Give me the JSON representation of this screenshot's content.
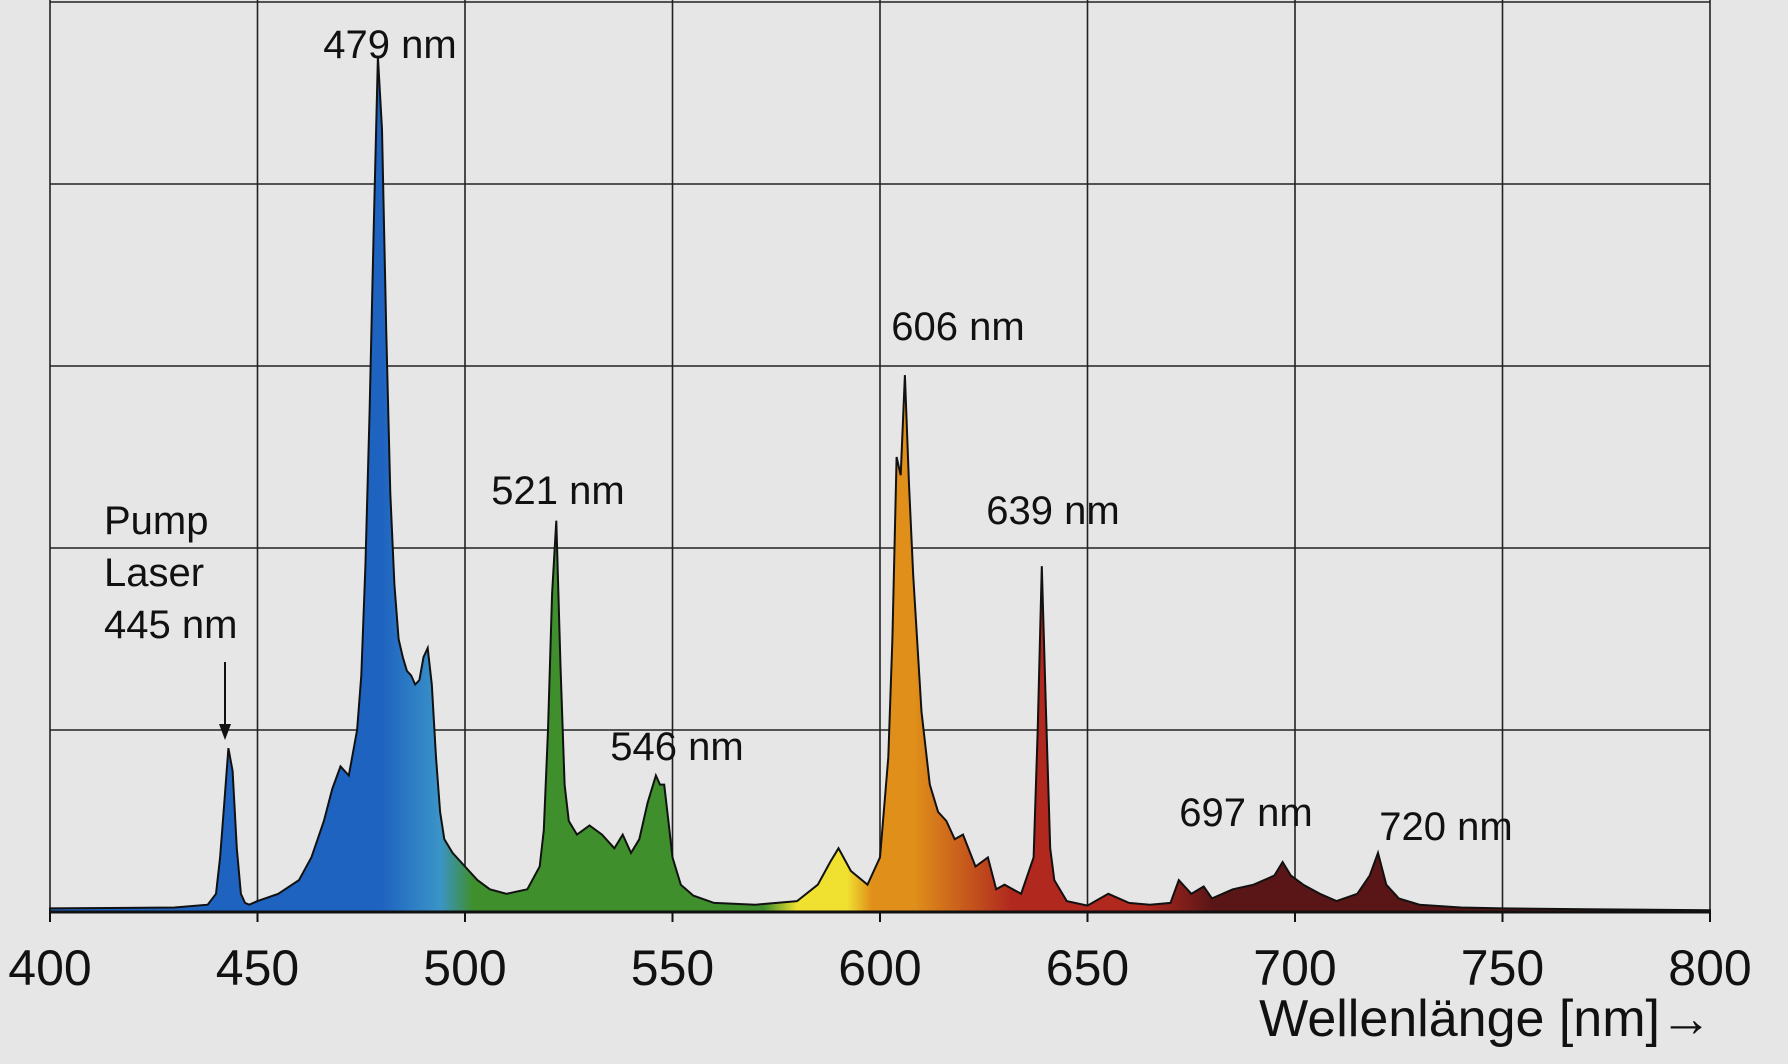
{
  "chart_data": {
    "type": "area",
    "title": "",
    "xlabel": "Wellenlänge [nm]→",
    "ylabel": "",
    "xlim": [
      400,
      800
    ],
    "ylim": [
      0,
      1
    ],
    "grid": true,
    "xticks": [
      "400",
      "450",
      "500",
      "550",
      "600",
      "650",
      "700",
      "750",
      "800"
    ],
    "fill": "rainbow gradient by wavelength",
    "colors": {
      "blue": "#1f63c0",
      "cyan": "#3a94c8",
      "green": "#3f8f2c",
      "yellow": "#f0e030",
      "orange": "#e0901a",
      "red": "#b0281e",
      "darkred": "#5a1616",
      "background": "#e6e6e6",
      "grid": "#222222"
    },
    "series": [
      {
        "x": [
          400,
          430,
          438,
          440,
          441,
          442,
          443,
          444,
          445,
          446,
          447,
          448,
          449,
          450,
          455,
          460,
          463,
          466,
          468,
          470,
          472,
          474,
          475,
          476,
          477,
          478,
          479,
          480,
          481,
          482,
          483,
          484,
          485,
          486,
          487,
          488,
          489,
          490,
          491,
          492,
          493,
          494,
          495,
          497,
          500,
          503,
          506,
          510,
          515,
          518,
          519,
          520,
          521,
          522,
          523,
          524,
          525,
          527,
          530,
          533,
          536,
          538,
          540,
          542,
          544,
          546,
          547,
          548,
          549,
          550,
          552,
          555,
          560,
          570,
          580,
          585,
          588,
          590,
          593,
          597,
          600,
          602,
          603,
          604,
          605,
          606,
          607,
          608,
          610,
          612,
          614,
          616,
          618,
          620,
          623,
          626,
          628,
          630,
          634,
          637,
          638,
          639,
          640,
          641,
          642,
          645,
          650,
          655,
          660,
          665,
          670,
          672,
          675,
          678,
          680,
          685,
          690,
          695,
          697,
          699,
          702,
          706,
          710,
          715,
          718,
          720,
          722,
          725,
          730,
          740,
          750,
          770,
          800
        ],
        "y": [
          0.004,
          0.005,
          0.008,
          0.02,
          0.06,
          0.12,
          0.18,
          0.155,
          0.07,
          0.02,
          0.01,
          0.008,
          0.01,
          0.012,
          0.02,
          0.035,
          0.06,
          0.1,
          0.135,
          0.16,
          0.15,
          0.2,
          0.26,
          0.38,
          0.55,
          0.75,
          0.94,
          0.86,
          0.64,
          0.46,
          0.36,
          0.3,
          0.28,
          0.265,
          0.26,
          0.25,
          0.255,
          0.28,
          0.29,
          0.25,
          0.17,
          0.11,
          0.08,
          0.065,
          0.05,
          0.035,
          0.025,
          0.02,
          0.025,
          0.05,
          0.09,
          0.2,
          0.35,
          0.43,
          0.27,
          0.14,
          0.1,
          0.085,
          0.095,
          0.085,
          0.07,
          0.085,
          0.065,
          0.08,
          0.12,
          0.15,
          0.14,
          0.14,
          0.1,
          0.06,
          0.03,
          0.018,
          0.01,
          0.008,
          0.012,
          0.03,
          0.055,
          0.07,
          0.045,
          0.03,
          0.06,
          0.17,
          0.3,
          0.5,
          0.48,
          0.59,
          0.47,
          0.37,
          0.22,
          0.14,
          0.11,
          0.1,
          0.08,
          0.085,
          0.05,
          0.06,
          0.025,
          0.03,
          0.02,
          0.06,
          0.2,
          0.38,
          0.22,
          0.07,
          0.035,
          0.012,
          0.007,
          0.02,
          0.01,
          0.008,
          0.01,
          0.035,
          0.02,
          0.028,
          0.015,
          0.025,
          0.03,
          0.04,
          0.055,
          0.04,
          0.03,
          0.02,
          0.012,
          0.02,
          0.04,
          0.065,
          0.03,
          0.015,
          0.008,
          0.005,
          0.004,
          0.003,
          0.002
        ]
      }
    ],
    "annotations": [
      {
        "text": "Pump",
        "x": 445
      },
      {
        "text": "Laser",
        "x": 445
      },
      {
        "text": "445 nm",
        "x": 445
      },
      {
        "text": "479 nm",
        "x": 479
      },
      {
        "text": "521 nm",
        "x": 521
      },
      {
        "text": "546 nm",
        "x": 546
      },
      {
        "text": "606 nm",
        "x": 606
      },
      {
        "text": "639 nm",
        "x": 639
      },
      {
        "text": "697 nm",
        "x": 697
      },
      {
        "text": "720 nm",
        "x": 720
      }
    ]
  }
}
